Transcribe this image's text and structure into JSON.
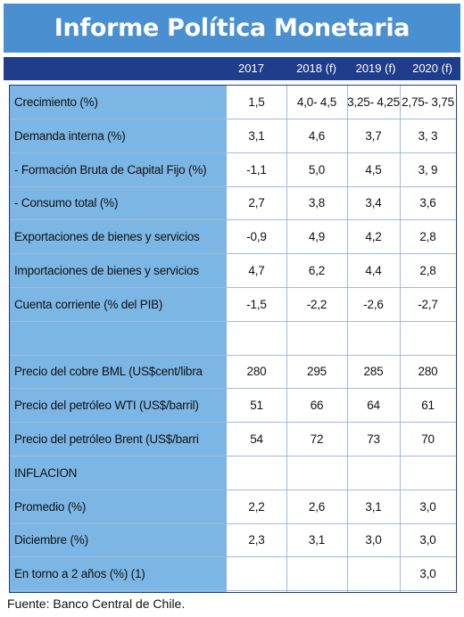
{
  "title": "Informe Política Monetaria",
  "years": [
    "2017",
    "2018 (f)",
    "2019 (f)",
    "2020 (f)"
  ],
  "rows": [
    {
      "label": "Crecimiento (%)",
      "values": [
        "1,5",
        "4,0- 4,5",
        "3,25- 4,25",
        "2,75- 3,75"
      ]
    },
    {
      "label": "Demanda interna (%)",
      "values": [
        "3,1",
        "4,6",
        "3,7",
        "3, 3"
      ]
    },
    {
      "label": "- Formación Bruta de Capital Fijo (%)",
      "values": [
        "-1,1",
        "5,0",
        "4,5",
        "3, 9"
      ]
    },
    {
      "label": "- Consumo total (%)",
      "values": [
        "2,7",
        "3,8",
        "3,4",
        "3,6"
      ]
    },
    {
      "label": "Exportaciones de bienes y servicios",
      "values": [
        "-0,9",
        "4,9",
        "4,2",
        "2,8"
      ]
    },
    {
      "label": "Importaciones de bienes y servicios",
      "values": [
        "4,7",
        "6,2",
        "4,4",
        "2,8"
      ]
    },
    {
      "label": "Cuenta corriente (% del PIB)",
      "values": [
        "-1,5",
        "-2,2",
        "-2,6",
        "-2,7"
      ]
    },
    {
      "label": "",
      "values": [
        "",
        "",
        "",
        ""
      ]
    },
    {
      "label": "Precio del cobre BML (US$cent/libra",
      "values": [
        "280",
        "295",
        "285",
        "280"
      ]
    },
    {
      "label": "Precio del petróleo WTI (US$/barril)",
      "values": [
        "51",
        "66",
        "64",
        "61"
      ]
    },
    {
      "label": "Precio del petróleo Brent (US$/barri",
      "values": [
        "54",
        "72",
        "73",
        "70"
      ]
    },
    {
      "label": "INFLACION",
      "values": [
        "",
        "",
        "",
        ""
      ]
    },
    {
      "label": "Promedio (%)",
      "values": [
        "2,2",
        "2,6",
        "3,1",
        "3,0"
      ]
    },
    {
      "label": "Diciembre (%)",
      "values": [
        "2,3",
        "3,1",
        "3,0",
        "3,0"
      ]
    },
    {
      "label": "En torno a 2 años (%) (1)",
      "values": [
        "",
        "",
        "",
        "3,0"
      ]
    }
  ],
  "source": "Fuente: Banco Central de Chile.",
  "colors": {
    "title_bg": "#4a90d0",
    "header_bg": "#1f3d8a",
    "label_col_bg": "#7cb6e4"
  }
}
